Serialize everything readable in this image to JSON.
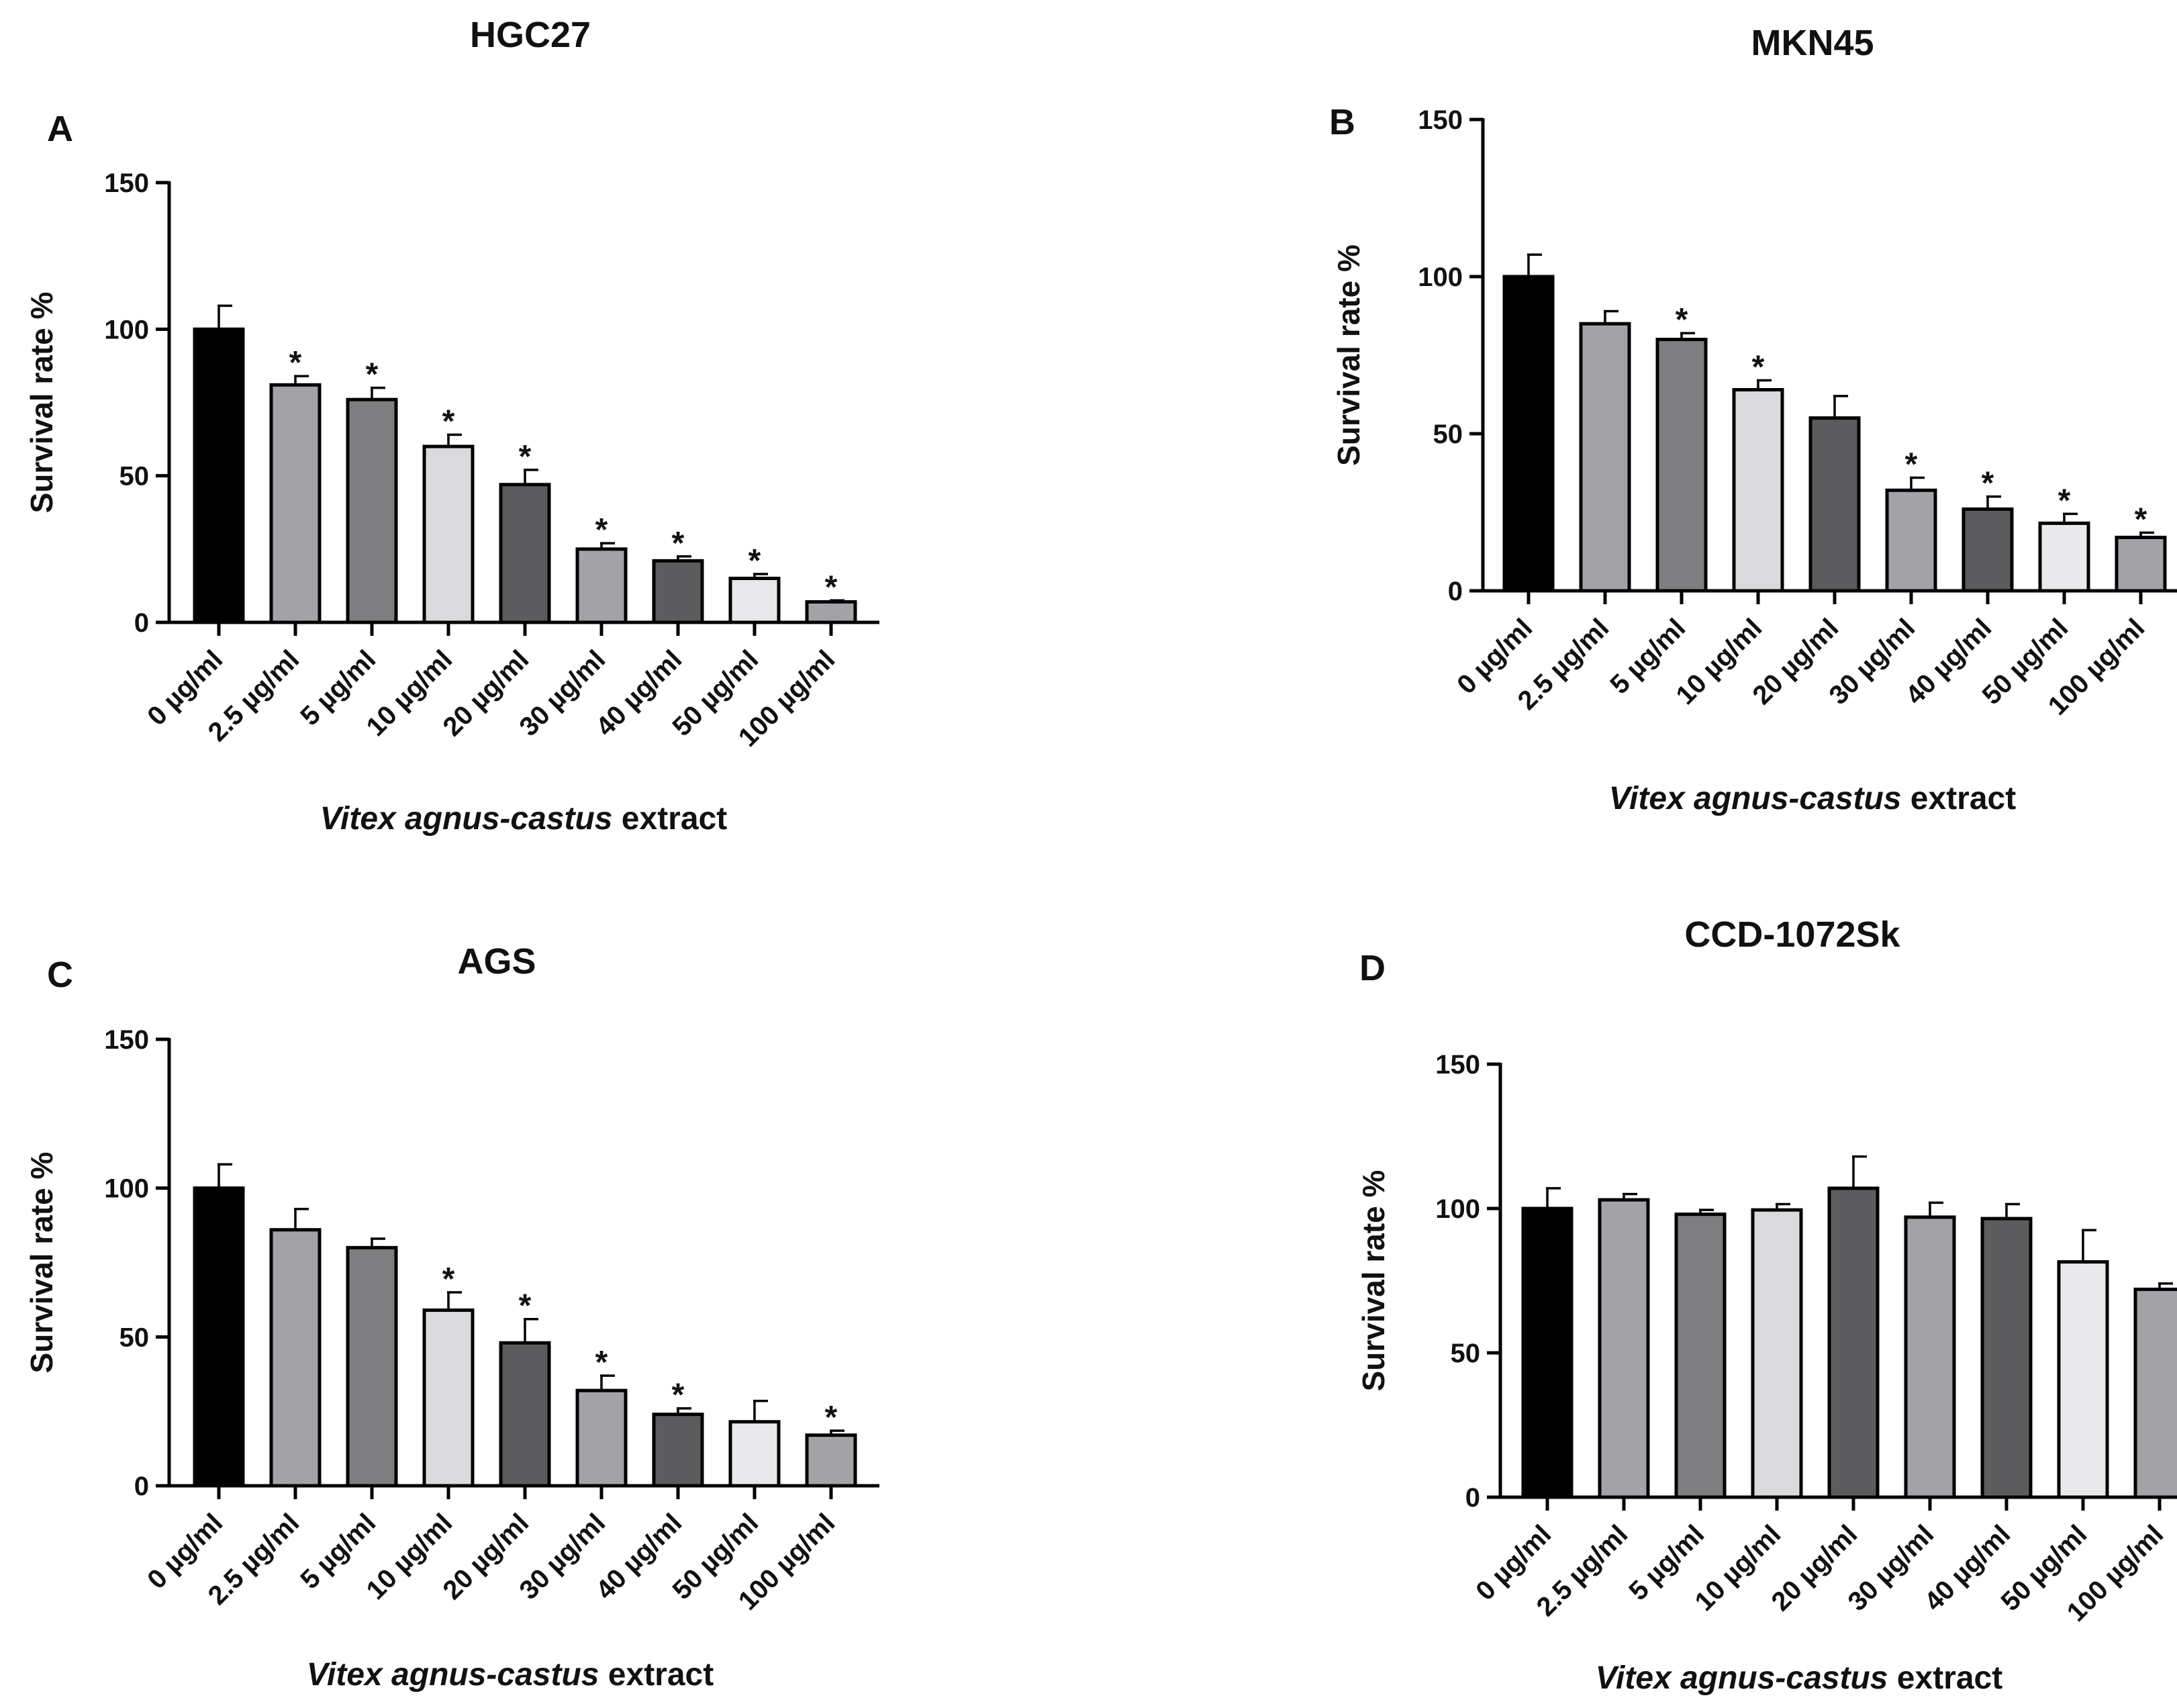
{
  "chart_data": [
    {
      "type": "bar",
      "panel_label": "A",
      "title": "HGC27",
      "ylabel": "Survival rate %",
      "xlabel_italic": "Vitex agnus-castus",
      "xlabel_rest": " extract",
      "ylim": [
        0,
        150
      ],
      "yticks": [
        0,
        50,
        100,
        150
      ],
      "categories": [
        "0 µg/ml",
        "2.5 µg/ml",
        "5 µg/ml",
        "10 µg/ml",
        "20 µg/ml",
        "30 µg/ml",
        "40 µg/ml",
        "50 µg/ml",
        "100 µg/ml"
      ],
      "values": [
        100,
        81,
        76,
        60,
        47,
        25,
        21,
        15,
        7
      ],
      "errors": [
        8,
        3,
        4,
        4,
        5,
        2,
        1.5,
        1.5,
        0.5
      ],
      "significance": [
        "",
        "*",
        "*",
        "*",
        "*",
        "*",
        "*",
        "*",
        "*"
      ]
    },
    {
      "type": "bar",
      "panel_label": "B",
      "title": "MKN45",
      "ylabel": "Survival rate %",
      "xlabel_italic": "Vitex agnus-castus",
      "xlabel_rest": " extract",
      "ylim": [
        0,
        150
      ],
      "yticks": [
        0,
        50,
        100,
        150
      ],
      "categories": [
        "0 µg/ml",
        "2.5 µg/ml",
        "5 µg/ml",
        "10 µg/ml",
        "20 µg/ml",
        "30 µg/ml",
        "40 µg/ml",
        "50 µg/ml",
        "100 µg/ml"
      ],
      "values": [
        100,
        85,
        80,
        64,
        55,
        32,
        26,
        21.5,
        17
      ],
      "errors": [
        7,
        4,
        2,
        3,
        7,
        4,
        4,
        3,
        1.5
      ],
      "significance": [
        "",
        "",
        "*",
        "*",
        "",
        "*",
        "*",
        "*",
        "*"
      ]
    },
    {
      "type": "bar",
      "panel_label": "C",
      "title": "AGS",
      "ylabel": "Survival rate %",
      "xlabel_italic": "Vitex agnus-castus",
      "xlabel_rest": " extract",
      "ylim": [
        0,
        150
      ],
      "yticks": [
        0,
        50,
        100,
        150
      ],
      "categories": [
        "0 µg/ml",
        "2.5 µg/ml",
        "5 µg/ml",
        "10 µg/ml",
        "20 µg/ml",
        "30 µg/ml",
        "40 µg/ml",
        "50 µg/ml",
        "100 µg/ml"
      ],
      "values": [
        100,
        86,
        80,
        59,
        48,
        32,
        24,
        21.5,
        17
      ],
      "errors": [
        8,
        7,
        3,
        6,
        8,
        5,
        2,
        7,
        1.5
      ],
      "significance": [
        "",
        "",
        "",
        "*",
        "*",
        "*",
        "*",
        "",
        "*"
      ]
    },
    {
      "type": "bar",
      "panel_label": "D",
      "title": "CCD-1072Sk",
      "ylabel": "Survival rate %",
      "xlabel_italic": "Vitex agnus-castus",
      "xlabel_rest": " extract",
      "ylim": [
        0,
        150
      ],
      "yticks": [
        0,
        50,
        100,
        150
      ],
      "categories": [
        "0 µg/ml",
        "2.5 µg/ml",
        "5 µg/ml",
        "10 µg/ml",
        "20 µg/ml",
        "30 µg/ml",
        "40 µg/ml",
        "50 µg/ml",
        "100 µg/ml"
      ],
      "values": [
        100,
        103,
        98,
        99.5,
        107,
        97,
        96.5,
        81.5,
        72
      ],
      "errors": [
        7,
        2,
        1.5,
        2,
        11,
        5,
        5,
        11,
        2
      ],
      "significance": [
        "",
        "",
        "",
        "",
        "",
        "",
        "",
        "",
        ""
      ]
    }
  ],
  "colors": {
    "bar_fills": [
      "#000000",
      "#a3a3a7",
      "#7e7e80",
      "#dadadc",
      "#5c5c5e",
      "#a3a3a7",
      "#5c5c5e",
      "#e9e9eb",
      "#a3a3a7"
    ],
    "stroke": "#000000"
  }
}
